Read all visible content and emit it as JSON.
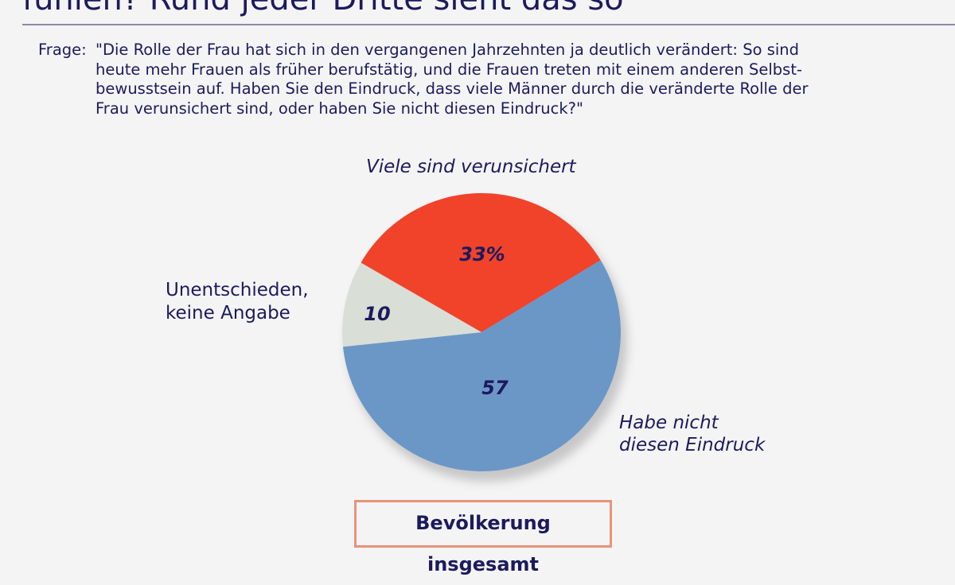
{
  "header": {
    "title": "fühlen? Rund jeder Dritte sieht das so"
  },
  "question": {
    "prefix": "Frage:",
    "lines": [
      "\"Die Rolle der Frau hat sich in den vergangenen Jahrzehnten ja deutlich verändert: So sind",
      "heute mehr Frauen als früher berufstätig, und die Frauen treten mit einem anderen Selbst-",
      "bewusstsein auf. Haben Sie den Eindruck, dass viele Männer durch die veränderte Rolle der",
      "Frau verunsichert sind, oder haben Sie nicht diesen Eindruck?\""
    ]
  },
  "chart_data": {
    "type": "pie",
    "slices": [
      {
        "label": "Viele sind verunsichert",
        "value": 33,
        "value_label": "33%",
        "color": "#f0432a"
      },
      {
        "label": "Habe nicht diesen Eindruck",
        "value": 57,
        "value_label": "57",
        "color": "#6b97c7"
      },
      {
        "label": "Unentschieden, keine Angabe",
        "value": 10,
        "value_label": "10",
        "color": "#d9ded6"
      }
    ],
    "label_lines": {
      "s0": [
        "Viele sind verunsichert"
      ],
      "s1": [
        "Habe nicht",
        "diesen Eindruck"
      ],
      "s2": [
        "Unentschieden,",
        "keine Angabe"
      ]
    }
  },
  "footer": {
    "base_label": "Bevölkerung insgesamt"
  }
}
